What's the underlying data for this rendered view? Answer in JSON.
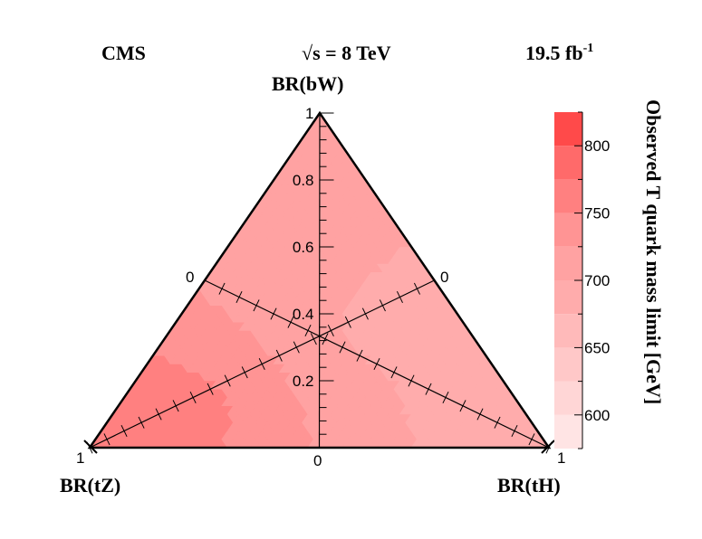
{
  "header": {
    "experiment": "CMS",
    "energy": "√s = 8 TeV",
    "lumi_value": "19.5 fb",
    "lumi_exp": "-1"
  },
  "chart_data": {
    "type": "heatmap",
    "title": "",
    "corners": {
      "top": "BR(bW)",
      "left": "BR(tZ)",
      "right": "BR(tH)"
    },
    "vertical_axis": {
      "range": [
        0,
        1
      ],
      "tick_labels": [
        "0.2",
        "0.4",
        "0.6",
        "0.8",
        "1"
      ]
    },
    "edge_labels": {
      "left_mid": "0",
      "right_mid": "0",
      "bottom_mid": "0",
      "bottom_left": "1",
      "bottom_right": "1"
    },
    "colorbar": {
      "label": "Observed T quark mass limit [GeV]",
      "range": [
        575,
        825
      ],
      "tick_values": [
        600,
        650,
        700,
        750,
        800
      ],
      "tick_labels": [
        "600",
        "650",
        "700",
        "750",
        "800"
      ],
      "levels": [
        575,
        600,
        625,
        650,
        675,
        700,
        725,
        750,
        775,
        800,
        825
      ],
      "colors": [
        "#ffe4e4",
        "#ffd6d6",
        "#ffc8c8",
        "#ffbaba",
        "#ffacac",
        "#ffa2a2",
        "#ff9494",
        "#ff8080",
        "#ff6a6a",
        "#ff4a4a",
        "#ff0000"
      ]
    },
    "grid_points": [
      {
        "bW": 1.0,
        "tH": 0.0,
        "tZ": 0.0,
        "limit": 700
      },
      {
        "bW": 0.6,
        "tH": 0.2,
        "tZ": 0.2,
        "limit": 705
      },
      {
        "bW": 0.4,
        "tH": 0.5,
        "tZ": 0.1,
        "limit": 695
      },
      {
        "bW": 0.4,
        "tH": 0.1,
        "tZ": 0.5,
        "limit": 725
      },
      {
        "bW": 0.1,
        "tH": 0.8,
        "tZ": 0.1,
        "limit": 690
      },
      {
        "bW": 0.1,
        "tH": 0.1,
        "tZ": 0.8,
        "limit": 760
      },
      {
        "bW": 0.0,
        "tH": 0.5,
        "tZ": 0.5,
        "limit": 725
      },
      {
        "bW": 0.0,
        "tH": 0.0,
        "tZ": 1.0,
        "limit": 775
      },
      {
        "bW": 0.0,
        "tH": 1.0,
        "tZ": 0.0,
        "limit": 695
      }
    ]
  }
}
